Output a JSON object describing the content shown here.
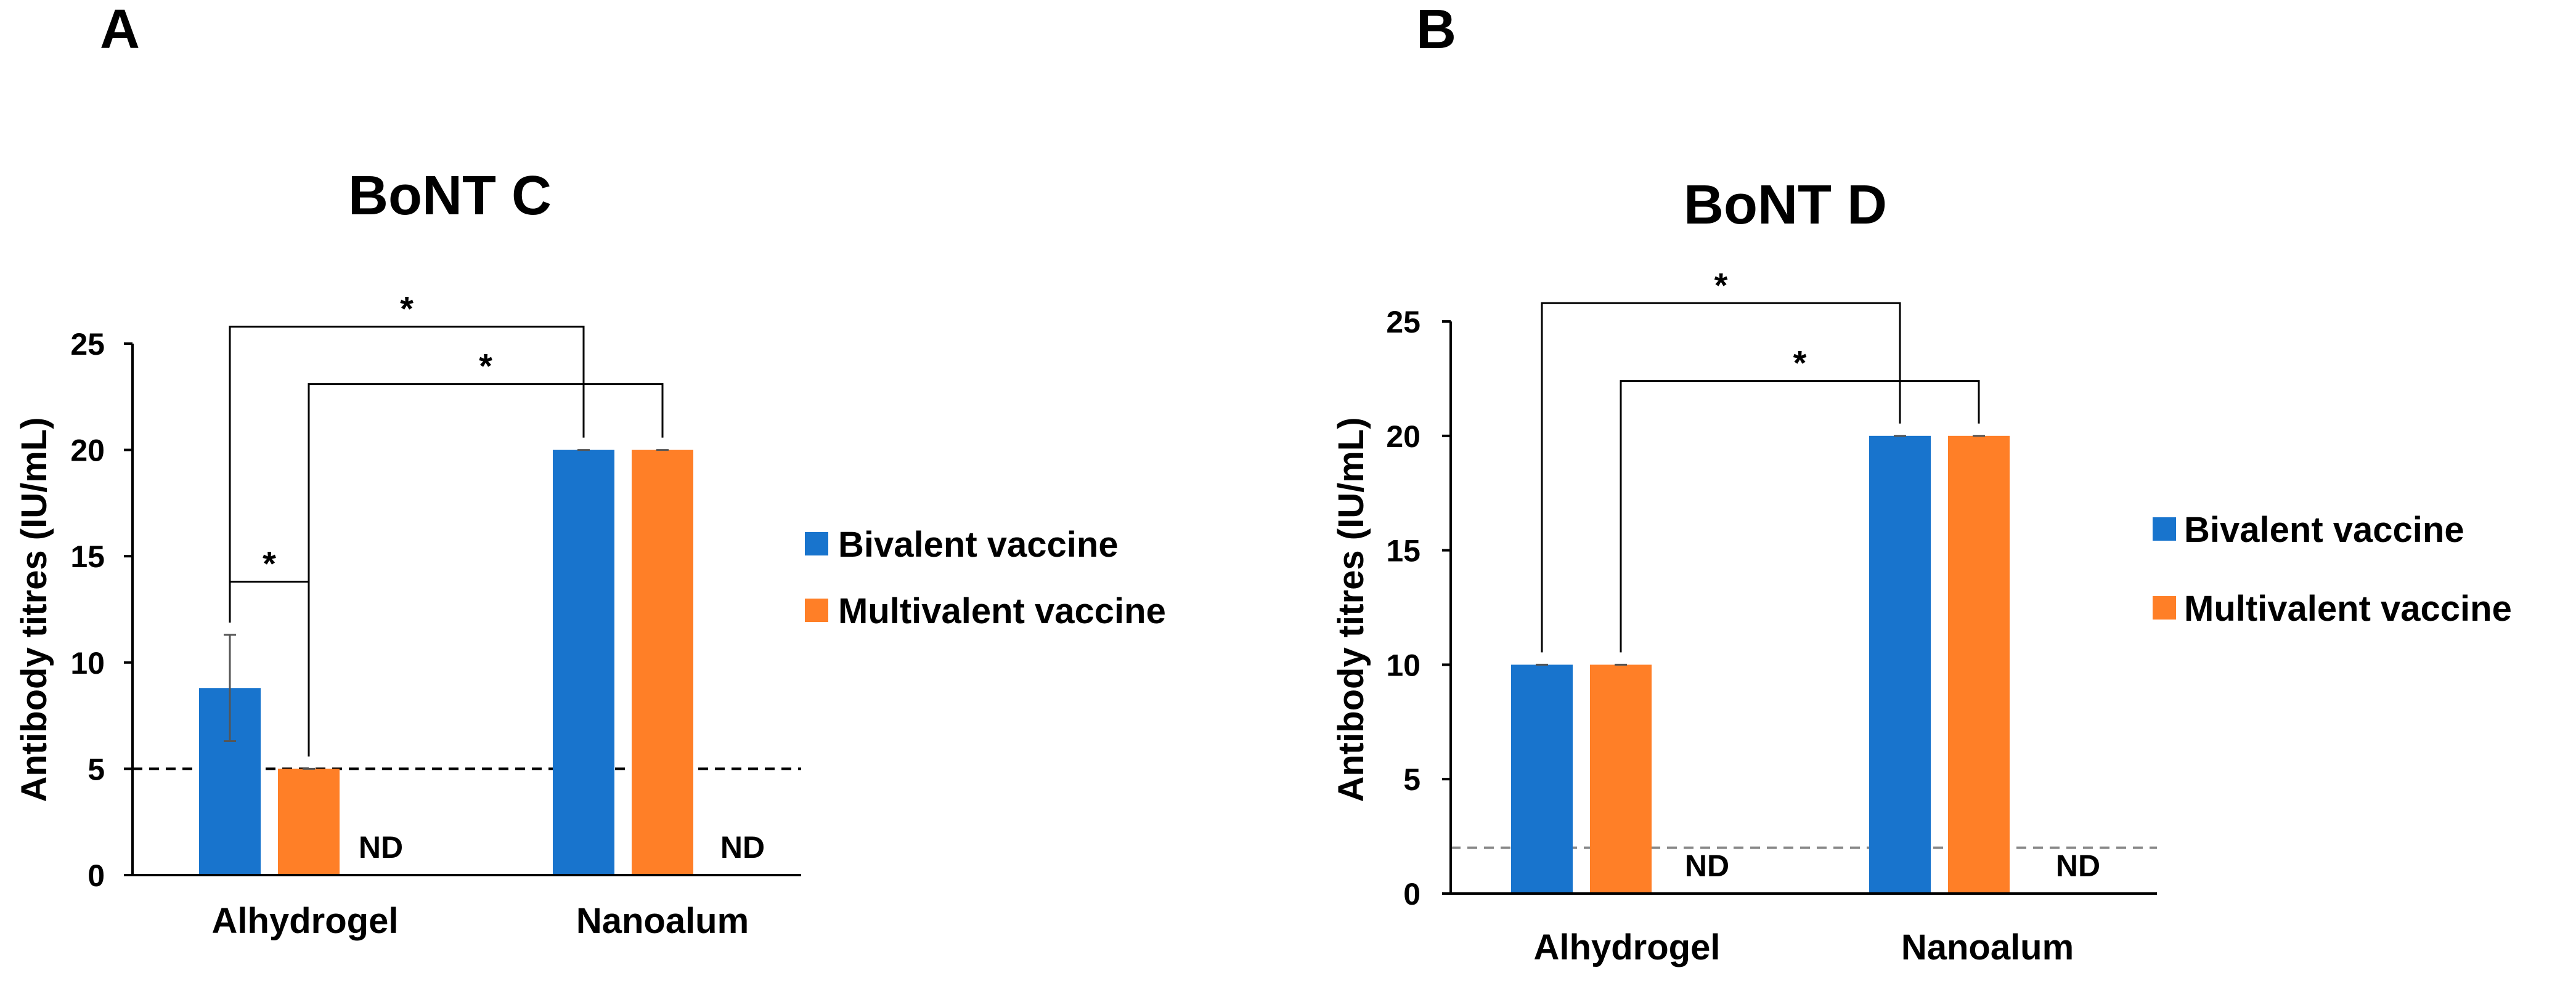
{
  "chart_data": [
    {
      "type": "bar",
      "panel_label": "A",
      "title": "BoNT C",
      "ylabel": "Antibody titres (IU/mL)",
      "xlabel": "",
      "categories": [
        "Alhydrogel",
        "Nanoalum"
      ],
      "ylim": [
        0,
        25
      ],
      "yticks": [
        0,
        5,
        10,
        15,
        20,
        25
      ],
      "series": [
        {
          "name": "Bivalent vaccine",
          "color": "#1874cd",
          "values": [
            8.8,
            20
          ],
          "errors": [
            2.5,
            0
          ]
        },
        {
          "name": "Multivalent vaccine",
          "color": "#ff7f27",
          "values": [
            5,
            20
          ],
          "errors": [
            0,
            0
          ]
        }
      ],
      "third_group_label": "ND",
      "threshold": {
        "value": 5,
        "style": "dashed",
        "color": "#000000"
      },
      "significance": [
        {
          "label": "*",
          "from": "Alhydrogel.Bivalent vaccine",
          "to": "Nanoalum.Bivalent vaccine",
          "bracket_y": 25.8
        },
        {
          "label": "*",
          "from": "Alhydrogel.Multivalent vaccine",
          "to": "Nanoalum.Multivalent vaccine",
          "bracket_y": 23.1
        },
        {
          "label": "*",
          "from": "Alhydrogel.Bivalent vaccine",
          "to": "Alhydrogel.Multivalent vaccine",
          "bracket_y": 13.8
        }
      ],
      "legend_position": "right",
      "grid": false
    },
    {
      "type": "bar",
      "panel_label": "B",
      "title": "BoNT D",
      "ylabel": "Antibody titres (IU/mL)",
      "xlabel": "",
      "categories": [
        "Alhydrogel",
        "Nanoalum"
      ],
      "ylim": [
        0,
        25
      ],
      "yticks": [
        0,
        5,
        10,
        15,
        20,
        25
      ],
      "series": [
        {
          "name": "Bivalent vaccine",
          "color": "#1874cd",
          "values": [
            10,
            20
          ],
          "errors": [
            0,
            0
          ]
        },
        {
          "name": "Multivalent vaccine",
          "color": "#ff7f27",
          "values": [
            10,
            20
          ],
          "errors": [
            0,
            0
          ]
        }
      ],
      "third_group_label": "ND",
      "threshold": {
        "value": 2,
        "style": "dashed",
        "color": "#888888"
      },
      "significance": [
        {
          "label": "*",
          "from": "Alhydrogel.Bivalent vaccine",
          "to": "Nanoalum.Bivalent vaccine",
          "bracket_y": 25.8
        },
        {
          "label": "*",
          "from": "Alhydrogel.Multivalent vaccine",
          "to": "Nanoalum.Multivalent vaccine",
          "bracket_y": 22.4
        }
      ],
      "legend_position": "right",
      "grid": false
    }
  ]
}
